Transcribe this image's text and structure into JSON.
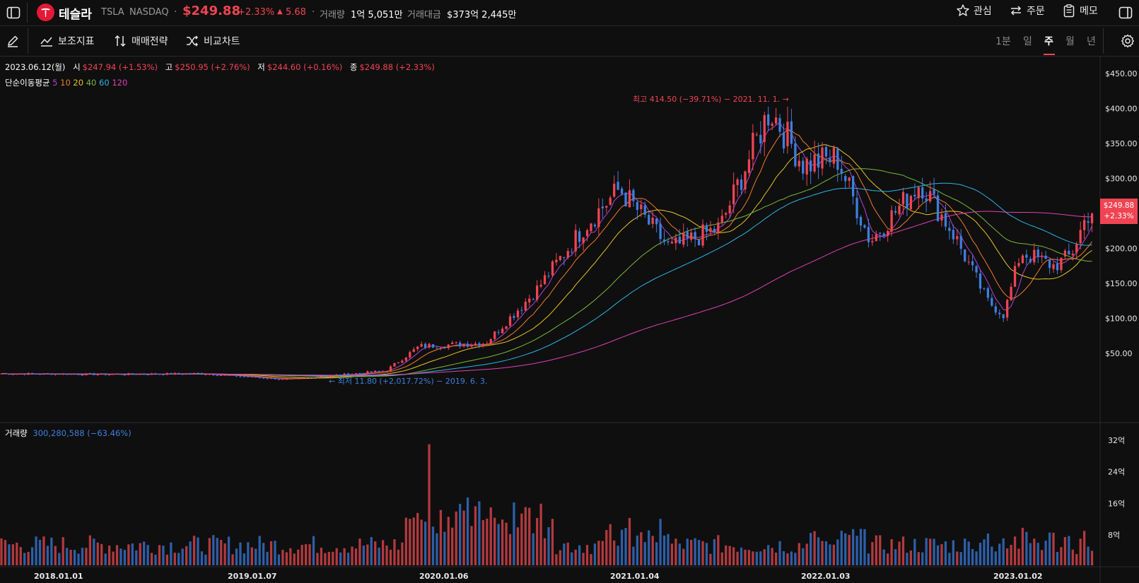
{
  "header": {
    "stock_name": "테슬라",
    "ticker": "TSLA",
    "exchange": "NASDAQ",
    "price": "$249.88",
    "change_pct": "+2.33%",
    "change_abs": "5.68",
    "volume_label": "거래량",
    "volume_value": "1억 5,051만",
    "amount_label": "거래대금",
    "amount_value": "$373억 2,445만",
    "watch_label": "관심",
    "order_label": "주문",
    "memo_label": "메모"
  },
  "toolbar": {
    "indicators_label": "보조지표",
    "strategy_label": "매매전략",
    "compare_label": "비교차트",
    "periods": [
      "1분",
      "일",
      "주",
      "월",
      "년"
    ],
    "active_period": "주"
  },
  "ohlc": {
    "date": "2023.06.12(월)",
    "open_label": "시",
    "open": "$247.94 (+1.53%)",
    "high_label": "고",
    "high": "$250.95 (+2.76%)",
    "low_label": "저",
    "low": "$244.60 (+0.16%)",
    "close_label": "종",
    "close": "$249.88 (+2.33%)"
  },
  "ma_legend": {
    "label": "단순이동평균",
    "periods": [
      "5",
      "10",
      "20",
      "40",
      "60",
      "120"
    ]
  },
  "annotations": {
    "high": "최고 414.50 (−39.71%) − 2021. 11. 1. →",
    "low": "← 최저 11.80 (+2,017.72%) − 2019. 6. 3."
  },
  "price_tag": {
    "price": "$249.88",
    "pct": "+2.33%"
  },
  "volume_legend": {
    "label": "거래량",
    "value": "300,280,588 (−63.46%)"
  },
  "colors": {
    "up": "#f04452",
    "down": "#3d7fe0",
    "ma5": "#b044d6",
    "ma10": "#f07c2a",
    "ma20": "#e8c228",
    "ma40": "#7ab83a",
    "ma60": "#2cb5e8",
    "ma120": "#e040b8"
  },
  "chart_data": {
    "type": "candlestick",
    "price_axis_ticks": [
      "$450.00",
      "$400.00",
      "$350.00",
      "$300.00",
      "$250.00",
      "$200.00",
      "$150.00",
      "$100.00",
      "$50.00"
    ],
    "volume_axis_ticks": [
      "32억",
      "24억",
      "16억",
      "8억"
    ],
    "x_ticks": [
      "2018.01.01",
      "2019.01.07",
      "2020.01.06",
      "2021.01.04",
      "2022.01.03",
      "2023.01.02"
    ],
    "ylim": [
      0,
      460
    ],
    "close_points": [
      [
        "2018-01",
        21
      ],
      [
        "2018-07",
        20
      ],
      [
        "2019-01",
        21
      ],
      [
        "2019-06",
        12.5
      ],
      [
        "2019-12",
        25
      ],
      [
        "2020-02",
        60
      ],
      [
        "2020-06",
        65
      ],
      [
        "2020-09",
        140
      ],
      [
        "2020-12",
        235
      ],
      [
        "2021-02",
        285
      ],
      [
        "2021-05",
        200
      ],
      [
        "2021-08",
        230
      ],
      [
        "2021-11",
        400
      ],
      [
        "2022-01",
        320
      ],
      [
        "2022-03",
        330
      ],
      [
        "2022-05",
        210
      ],
      [
        "2022-08",
        295
      ],
      [
        "2022-10",
        220
      ],
      [
        "2022-12",
        125
      ],
      [
        "2023-01",
        105
      ],
      [
        "2023-02",
        195
      ],
      [
        "2023-04",
        175
      ],
      [
        "2023-05",
        190
      ],
      [
        "2023-06",
        249.88
      ]
    ],
    "max_volume_label": "32억"
  }
}
